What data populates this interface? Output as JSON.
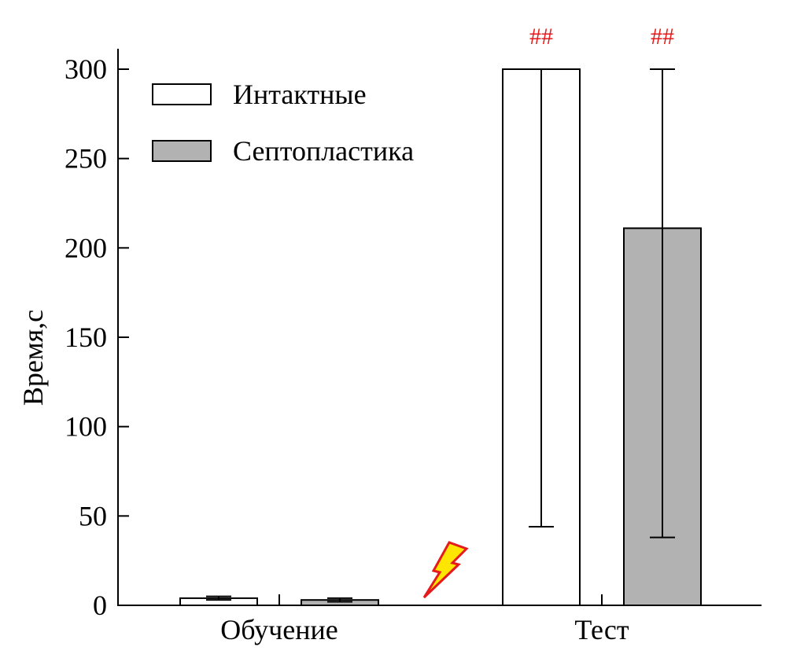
{
  "chart_data": {
    "type": "bar",
    "title": "",
    "xlabel": "",
    "ylabel": "Время,с",
    "ylim": [
      0,
      310
    ],
    "yticks": [
      0,
      50,
      100,
      150,
      200,
      250,
      300
    ],
    "ytick_labels": [
      "0",
      "50",
      "100",
      "150",
      "200",
      "250",
      "300"
    ],
    "categories": [
      "Обучение",
      "Тест"
    ],
    "series": [
      {
        "name": "Интактные",
        "color": "#ffffff",
        "values": [
          4,
          300
        ],
        "error_low": [
          3,
          44
        ],
        "error_high": [
          5,
          300
        ]
      },
      {
        "name": "Септопластика",
        "color": "#b2b2b2",
        "values": [
          3,
          211
        ],
        "error_low": [
          2,
          38
        ],
        "error_high": [
          4,
          300
        ]
      }
    ],
    "annotations": [
      {
        "series": 0,
        "category": 1,
        "text": "##",
        "color": "#e41a1c"
      },
      {
        "series": 1,
        "category": 1,
        "text": "##",
        "color": "#e41a1c"
      }
    ],
    "legend_position": "top-left",
    "grid": false
  },
  "icons": {
    "shock": "lightning-icon",
    "shock_colors": {
      "fill": "#ffe600",
      "stroke": "#e41a1c"
    }
  }
}
